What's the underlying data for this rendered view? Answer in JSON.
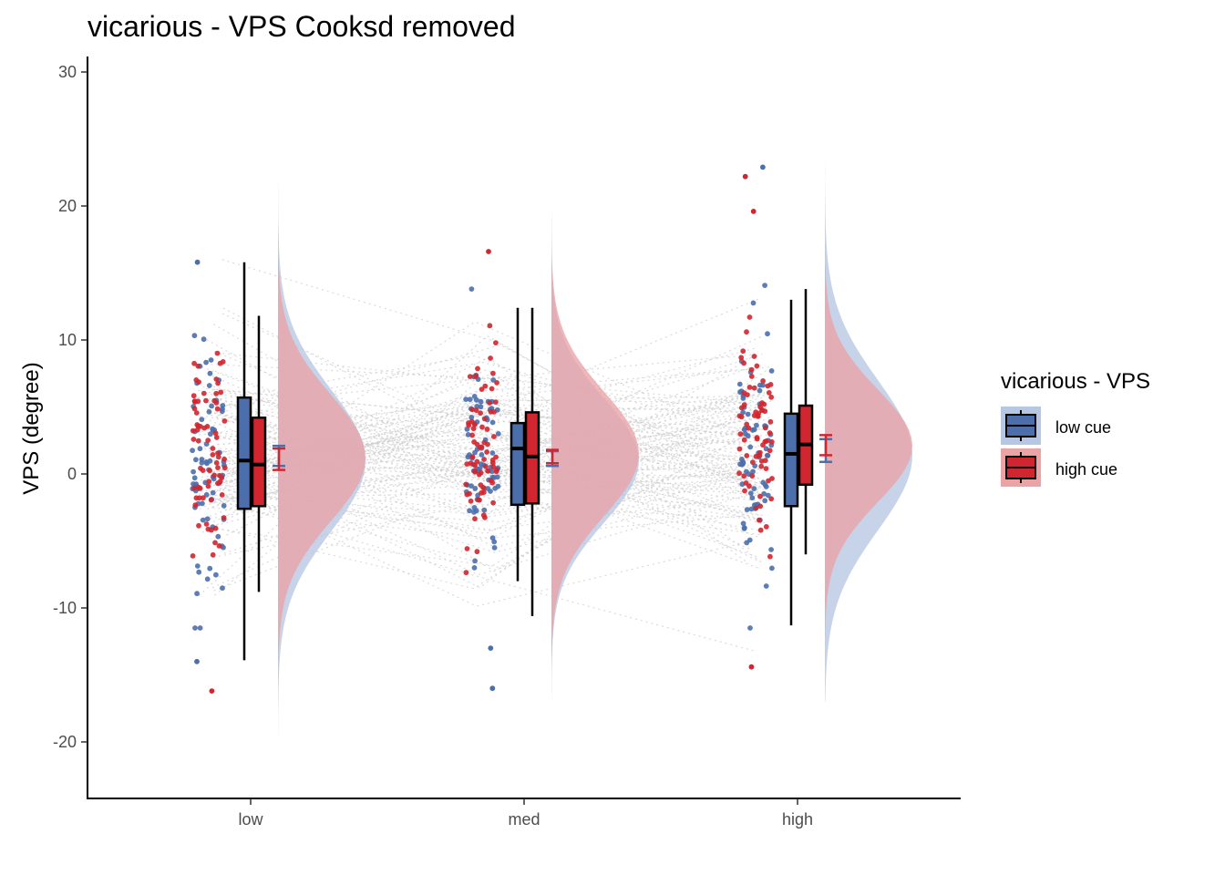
{
  "chart_data": {
    "type": "raincloud",
    "title": "vicarious  -  VPS  Cooksd removed",
    "xlabel": "",
    "ylabel": "VPS  (degree)",
    "categories": [
      "low",
      "med",
      "high"
    ],
    "ylim": [
      -24,
      31
    ],
    "yticks": [
      30,
      20,
      10,
      0,
      -10,
      -20
    ],
    "grid": false,
    "legend": {
      "title": "vicarious  -  VPS",
      "placement": "right",
      "items": [
        "low cue",
        "high cue"
      ]
    },
    "colors": {
      "low_cue": "#4c6fac",
      "high_cue": "#d1262f",
      "low_cue_fill": "#b7c6e2",
      "high_cue_fill": "#eba3a6"
    },
    "series": [
      {
        "name": "low cue",
        "box": [
          {
            "category": "low",
            "min": -13.9,
            "q1": -2.6,
            "median": 1.0,
            "q3": 5.7,
            "max": 15.8
          },
          {
            "category": "med",
            "min": -8.0,
            "q1": -2.3,
            "median": 1.9,
            "q3": 3.8,
            "max": 12.4
          },
          {
            "category": "high",
            "min": -11.3,
            "q1": -2.4,
            "median": 1.5,
            "q3": 4.5,
            "max": 13.0
          }
        ],
        "mean_se": [
          {
            "category": "low",
            "mean": 1.3,
            "lo": 0.6,
            "hi": 2.1
          },
          {
            "category": "med",
            "mean": 1.1,
            "lo": 0.6,
            "hi": 1.7
          },
          {
            "category": "high",
            "mean": 1.8,
            "lo": 0.9,
            "hi": 2.6
          }
        ],
        "density": [
          {
            "category": "low",
            "mu": 1.0,
            "sigma": 5.3,
            "range": [
              -21,
              22
            ]
          },
          {
            "category": "med",
            "mu": 1.0,
            "sigma": 4.6,
            "range": [
              -21,
              22
            ]
          },
          {
            "category": "high",
            "mu": 1.4,
            "sigma": 5.6,
            "range": [
              -17,
              28
            ]
          }
        ]
      },
      {
        "name": "high cue",
        "box": [
          {
            "category": "low",
            "min": -8.8,
            "q1": -2.4,
            "median": 0.7,
            "q3": 4.2,
            "max": 11.8
          },
          {
            "category": "med",
            "min": -10.6,
            "q1": -2.2,
            "median": 1.3,
            "q3": 4.6,
            "max": 12.4
          },
          {
            "category": "high",
            "min": -6.0,
            "q1": -0.8,
            "median": 2.2,
            "q3": 5.1,
            "max": 13.8
          }
        ],
        "mean_se": [
          {
            "category": "low",
            "mean": 1.2,
            "lo": 0.3,
            "hi": 1.9
          },
          {
            "category": "med",
            "mean": 1.3,
            "lo": 0.8,
            "hi": 1.8
          },
          {
            "category": "high",
            "mean": 2.2,
            "lo": 1.4,
            "hi": 2.9
          }
        ],
        "density": [
          {
            "category": "low",
            "mu": 1.2,
            "sigma": 4.7,
            "range": [
              -21,
              22
            ]
          },
          {
            "category": "med",
            "mu": 1.5,
            "sigma": 4.6,
            "range": [
              -21,
              22
            ]
          },
          {
            "category": "high",
            "mu": 2.1,
            "sigma": 4.2,
            "range": [
              -19,
              28
            ]
          }
        ]
      }
    ],
    "outlier_points": [
      {
        "series": "low cue",
        "category": "low",
        "y": 15.8
      },
      {
        "series": "low cue",
        "category": "low",
        "y": -14.0
      },
      {
        "series": "high cue",
        "category": "low",
        "y": -16.2
      },
      {
        "series": "high cue",
        "category": "med",
        "y": 16.6
      },
      {
        "series": "low cue",
        "category": "med",
        "y": -16.0
      },
      {
        "series": "low cue",
        "category": "med",
        "y": -13.0
      },
      {
        "series": "low cue",
        "category": "high",
        "y": 22.9
      },
      {
        "series": "high cue",
        "category": "high",
        "y": 22.2
      },
      {
        "series": "high cue",
        "category": "high",
        "y": 19.6
      },
      {
        "series": "high cue",
        "category": "high",
        "y": -14.4
      }
    ]
  }
}
